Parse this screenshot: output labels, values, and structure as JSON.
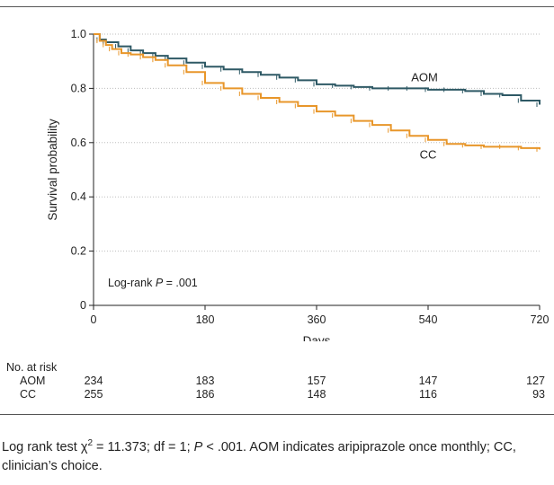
{
  "chart_data": {
    "type": "line",
    "title": "",
    "xlabel": "Days",
    "ylabel": "Survival probability",
    "xlim": [
      0,
      720
    ],
    "ylim": [
      0,
      1.0
    ],
    "x_ticks": [
      "0",
      "180",
      "360",
      "540",
      "720"
    ],
    "y_ticks": [
      "0",
      "0.2",
      "0.4",
      "0.6",
      "0.8",
      "1.0"
    ],
    "grid": "horizontal dotted",
    "annotation": {
      "prefix": "Log-rank ",
      "stat": "P",
      "text": " = .001"
    },
    "series": [
      {
        "name": "AOM",
        "color": "#2e5965",
        "x": [
          0,
          10,
          20,
          40,
          60,
          80,
          100,
          120,
          150,
          180,
          210,
          240,
          270,
          300,
          330,
          360,
          390,
          420,
          450,
          480,
          510,
          540,
          570,
          600,
          630,
          660,
          690,
          720
        ],
        "y": [
          1.0,
          0.98,
          0.97,
          0.955,
          0.94,
          0.93,
          0.92,
          0.91,
          0.895,
          0.88,
          0.87,
          0.86,
          0.85,
          0.84,
          0.83,
          0.815,
          0.81,
          0.805,
          0.8,
          0.8,
          0.8,
          0.795,
          0.795,
          0.79,
          0.78,
          0.775,
          0.755,
          0.74
        ]
      },
      {
        "name": "CC",
        "color": "#e8962a",
        "x": [
          0,
          10,
          20,
          30,
          45,
          60,
          80,
          100,
          120,
          150,
          180,
          210,
          240,
          270,
          300,
          330,
          360,
          390,
          420,
          450,
          480,
          510,
          540,
          570,
          600,
          630,
          660,
          690,
          720
        ],
        "y": [
          1.0,
          0.975,
          0.96,
          0.945,
          0.93,
          0.925,
          0.915,
          0.905,
          0.885,
          0.86,
          0.82,
          0.8,
          0.78,
          0.765,
          0.75,
          0.735,
          0.715,
          0.7,
          0.68,
          0.665,
          0.645,
          0.625,
          0.61,
          0.595,
          0.59,
          0.585,
          0.585,
          0.58,
          0.575
        ]
      }
    ]
  },
  "risk_table": {
    "header": "No. at risk",
    "rows": [
      {
        "label": "AOM",
        "values": [
          "234",
          "183",
          "157",
          "147",
          "127"
        ]
      },
      {
        "label": "CC",
        "values": [
          "255",
          "186",
          "148",
          "116",
          "93"
        ]
      }
    ]
  },
  "caption": {
    "part1": "Log rank test χ",
    "sup": "2",
    "part2": " = 11.373; df = 1; ",
    "p": "P",
    "part3": " < .001. AOM indicates aripiprazole once monthly; CC, clinician’s choice."
  }
}
